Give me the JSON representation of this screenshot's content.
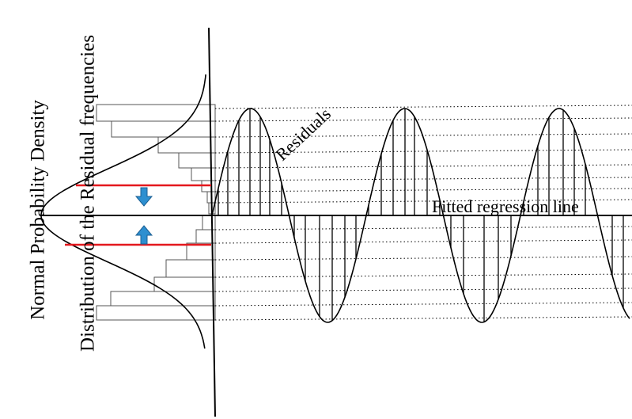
{
  "labels": {
    "normal_density": "Normal Probability Density",
    "residual_distribution": "Distribution of the Residual frequencies",
    "residuals": "Residuals",
    "fitted_line": "Fitted regression line"
  },
  "colors": {
    "ink": "#000000",
    "bar_stroke": "#555555",
    "band": "#e4181e",
    "arrow_fill": "#2d8fd0",
    "arrow_stroke": "#1b5f93"
  },
  "icons": {
    "down_arrow": "arrow-down-icon",
    "up_arrow": "arrow-up-icon"
  }
}
